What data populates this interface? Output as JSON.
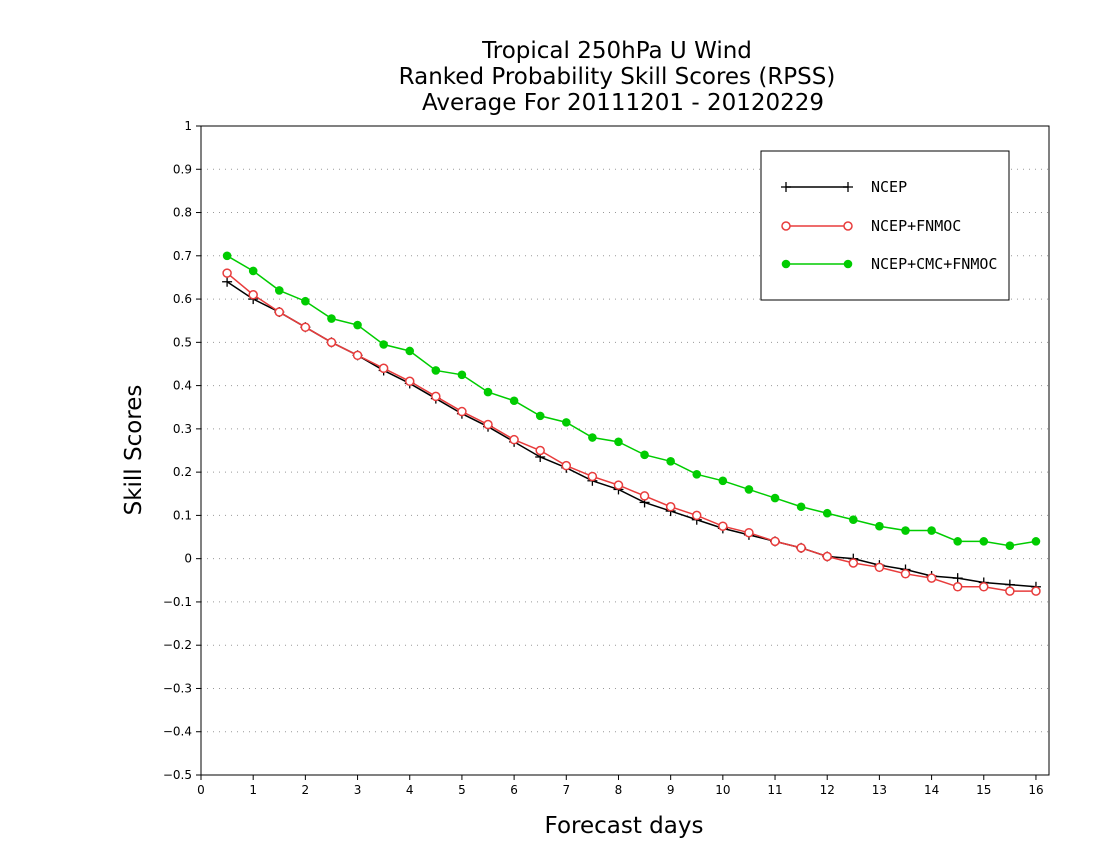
{
  "chart_data": {
    "type": "line",
    "title": [
      "Tropical 250hPa U Wind",
      "Ranked Probability Skill Scores (RPSS)",
      "Average For 20111201 - 20120229"
    ],
    "xlabel": "Forecast days",
    "ylabel": "Skill Scores",
    "xlim": [
      0,
      16.25
    ],
    "ylim": [
      -0.5,
      1
    ],
    "xticks": [
      0,
      1,
      2,
      3,
      4,
      5,
      6,
      7,
      8,
      9,
      10,
      11,
      12,
      13,
      14,
      15,
      16
    ],
    "yticks": [
      -0.5,
      -0.4,
      -0.3,
      -0.2,
      -0.1,
      0,
      0.1,
      0.2,
      0.3,
      0.4,
      0.5,
      0.6,
      0.7,
      0.8,
      0.9,
      1
    ],
    "ytick_labels": [
      "−0.5",
      "−0.4",
      "−0.3",
      "−0.2",
      "−0.1",
      "0",
      "0.1",
      "0.2",
      "0.3",
      "0.4",
      "0.5",
      "0.6",
      "0.7",
      "0.8",
      "0.9",
      "1"
    ],
    "grid": "horizontal dotted",
    "legend_position": "top-right",
    "x": [
      0.5,
      1,
      1.5,
      2,
      2.5,
      3,
      3.5,
      4,
      4.5,
      5,
      5.5,
      6,
      6.5,
      7,
      7.5,
      8,
      8.5,
      9,
      9.5,
      10,
      10.5,
      11,
      11.5,
      12,
      12.5,
      13,
      13.5,
      14,
      14.5,
      15,
      15.5,
      16
    ],
    "series": [
      {
        "name": "NCEP",
        "color": "#000000",
        "marker": "plus",
        "values": [
          0.64,
          0.6,
          0.57,
          0.535,
          0.5,
          0.47,
          0.435,
          0.405,
          0.37,
          0.335,
          0.305,
          0.27,
          0.235,
          0.21,
          0.18,
          0.16,
          0.13,
          0.11,
          0.09,
          0.07,
          0.055,
          0.04,
          0.025,
          0.005,
          0.0,
          -0.015,
          -0.025,
          -0.04,
          -0.045,
          -0.055,
          -0.06,
          -0.065
        ]
      },
      {
        "name": "NCEP+FNMOC",
        "color": "#e83c3c",
        "marker": "open-circle",
        "values": [
          0.66,
          0.61,
          0.57,
          0.535,
          0.5,
          0.47,
          0.44,
          0.41,
          0.375,
          0.34,
          0.31,
          0.275,
          0.25,
          0.215,
          0.19,
          0.17,
          0.145,
          0.12,
          0.1,
          0.075,
          0.06,
          0.04,
          0.025,
          0.005,
          -0.01,
          -0.02,
          -0.035,
          -0.045,
          -0.065,
          -0.065,
          -0.075,
          -0.075
        ]
      },
      {
        "name": "NCEP+CMC+FNMOC",
        "color": "#00cc00",
        "marker": "filled-circle",
        "values": [
          0.7,
          0.665,
          0.62,
          0.595,
          0.555,
          0.54,
          0.495,
          0.48,
          0.435,
          0.425,
          0.385,
          0.365,
          0.33,
          0.315,
          0.28,
          0.27,
          0.24,
          0.225,
          0.195,
          0.18,
          0.16,
          0.14,
          0.12,
          0.105,
          0.09,
          0.075,
          0.065,
          0.065,
          0.04,
          0.04,
          0.03,
          0.04
        ]
      }
    ]
  }
}
